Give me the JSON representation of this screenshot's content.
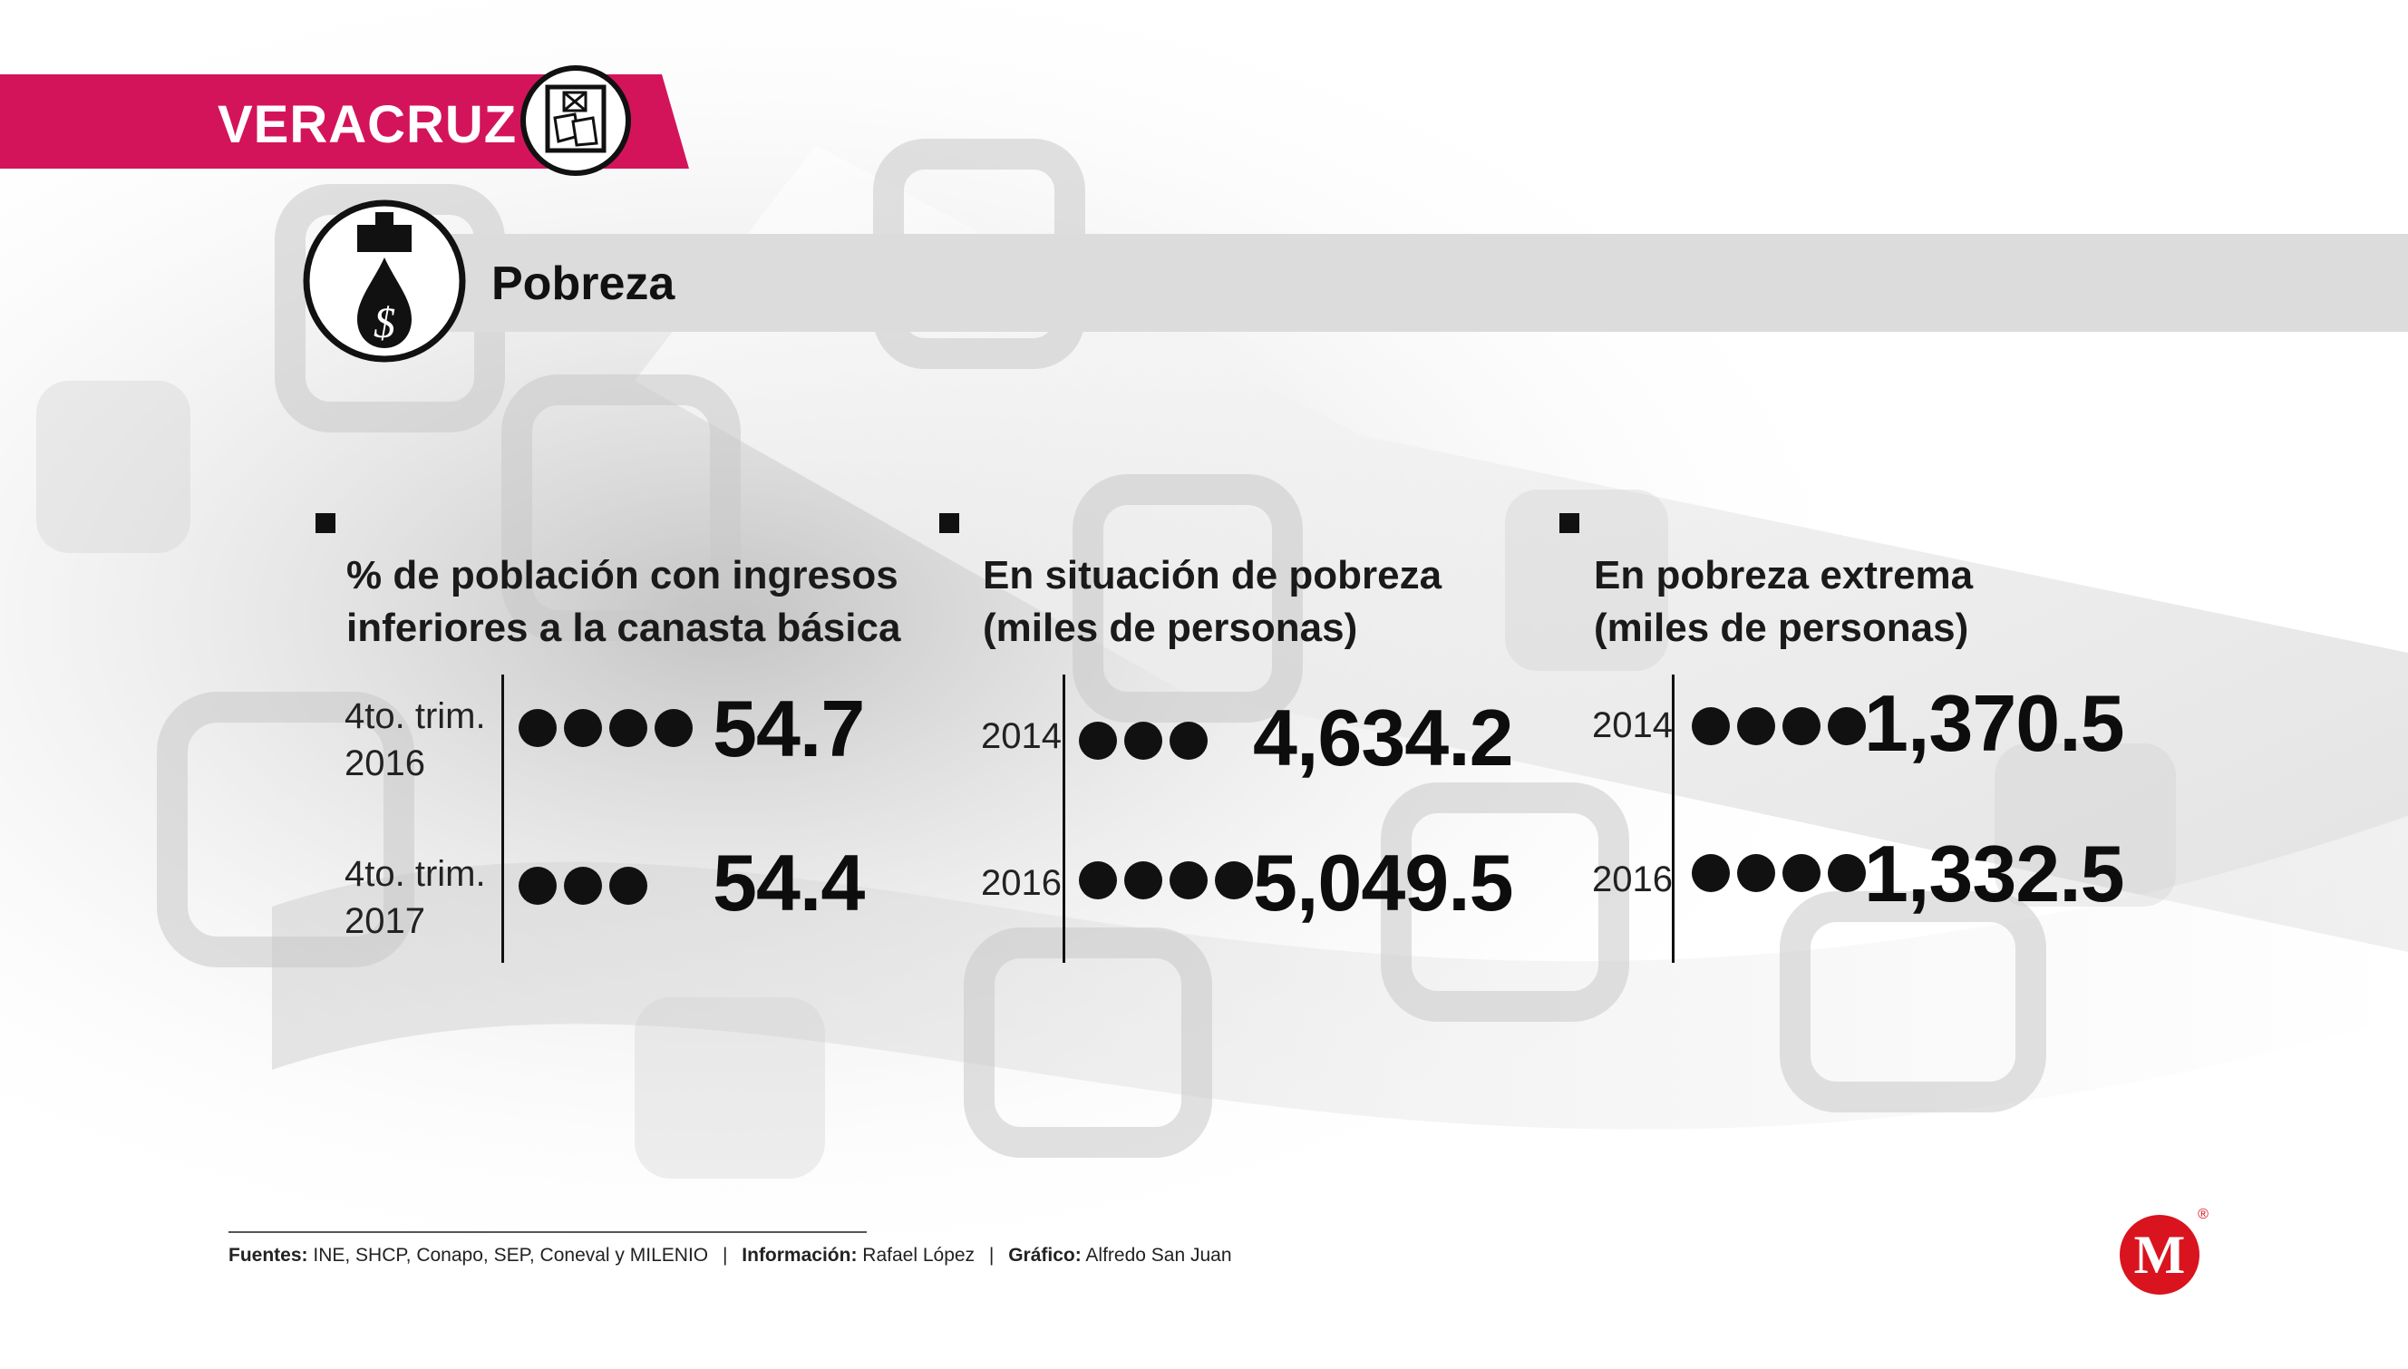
{
  "header": {
    "state": "VERACRUZ",
    "topic": "Pobreza",
    "accent_color": "#d4145a",
    "state_icon": "state-emblem-icon",
    "topic_icon": "oil-drop-dollar-icon"
  },
  "panels": [
    {
      "heading": "% de población con ingresos\ninferiores a la canasta básica",
      "rows": [
        {
          "label": "4to. trim.\n2016",
          "dots": 4,
          "value": "54.7"
        },
        {
          "label": "4to. trim.\n2017",
          "dots": 3,
          "value": "54.4"
        }
      ]
    },
    {
      "heading": "En situación de pobreza\n(miles de personas)",
      "rows": [
        {
          "label": "2014",
          "dots": 3,
          "value": "4,634.2"
        },
        {
          "label": "2016",
          "dots": 4,
          "value": "5,049.5"
        }
      ]
    },
    {
      "heading": "En pobreza extrema\n(miles de personas)",
      "rows": [
        {
          "label": "2014",
          "dots": 4,
          "value": "1,370.5"
        },
        {
          "label": "2016",
          "dots": 4,
          "value": "1,332.5"
        }
      ]
    }
  ],
  "chart_data": [
    {
      "type": "table",
      "title": "% de población con ingresos inferiores a la canasta básica",
      "categories": [
        "4to. trim. 2016",
        "4to. trim. 2017"
      ],
      "values": [
        54.7,
        54.4
      ]
    },
    {
      "type": "table",
      "title": "En situación de pobreza (miles de personas)",
      "categories": [
        "2014",
        "2016"
      ],
      "values": [
        4634.2,
        5049.5
      ]
    },
    {
      "type": "table",
      "title": "En pobreza extrema (miles de personas)",
      "categories": [
        "2014",
        "2016"
      ],
      "values": [
        1370.5,
        1332.5
      ]
    }
  ],
  "footer": {
    "sources_label": "Fuentes:",
    "sources": "INE, SHCP, Conapo, SEP, Coneval y MILENIO",
    "info_label": "Información:",
    "info": "Rafael López",
    "graphic_label": "Gráfico:",
    "graphic": "Alfredo San Juan",
    "divider": "|"
  },
  "logo": {
    "letter": "M",
    "mark": "®",
    "color": "#d9141f"
  }
}
